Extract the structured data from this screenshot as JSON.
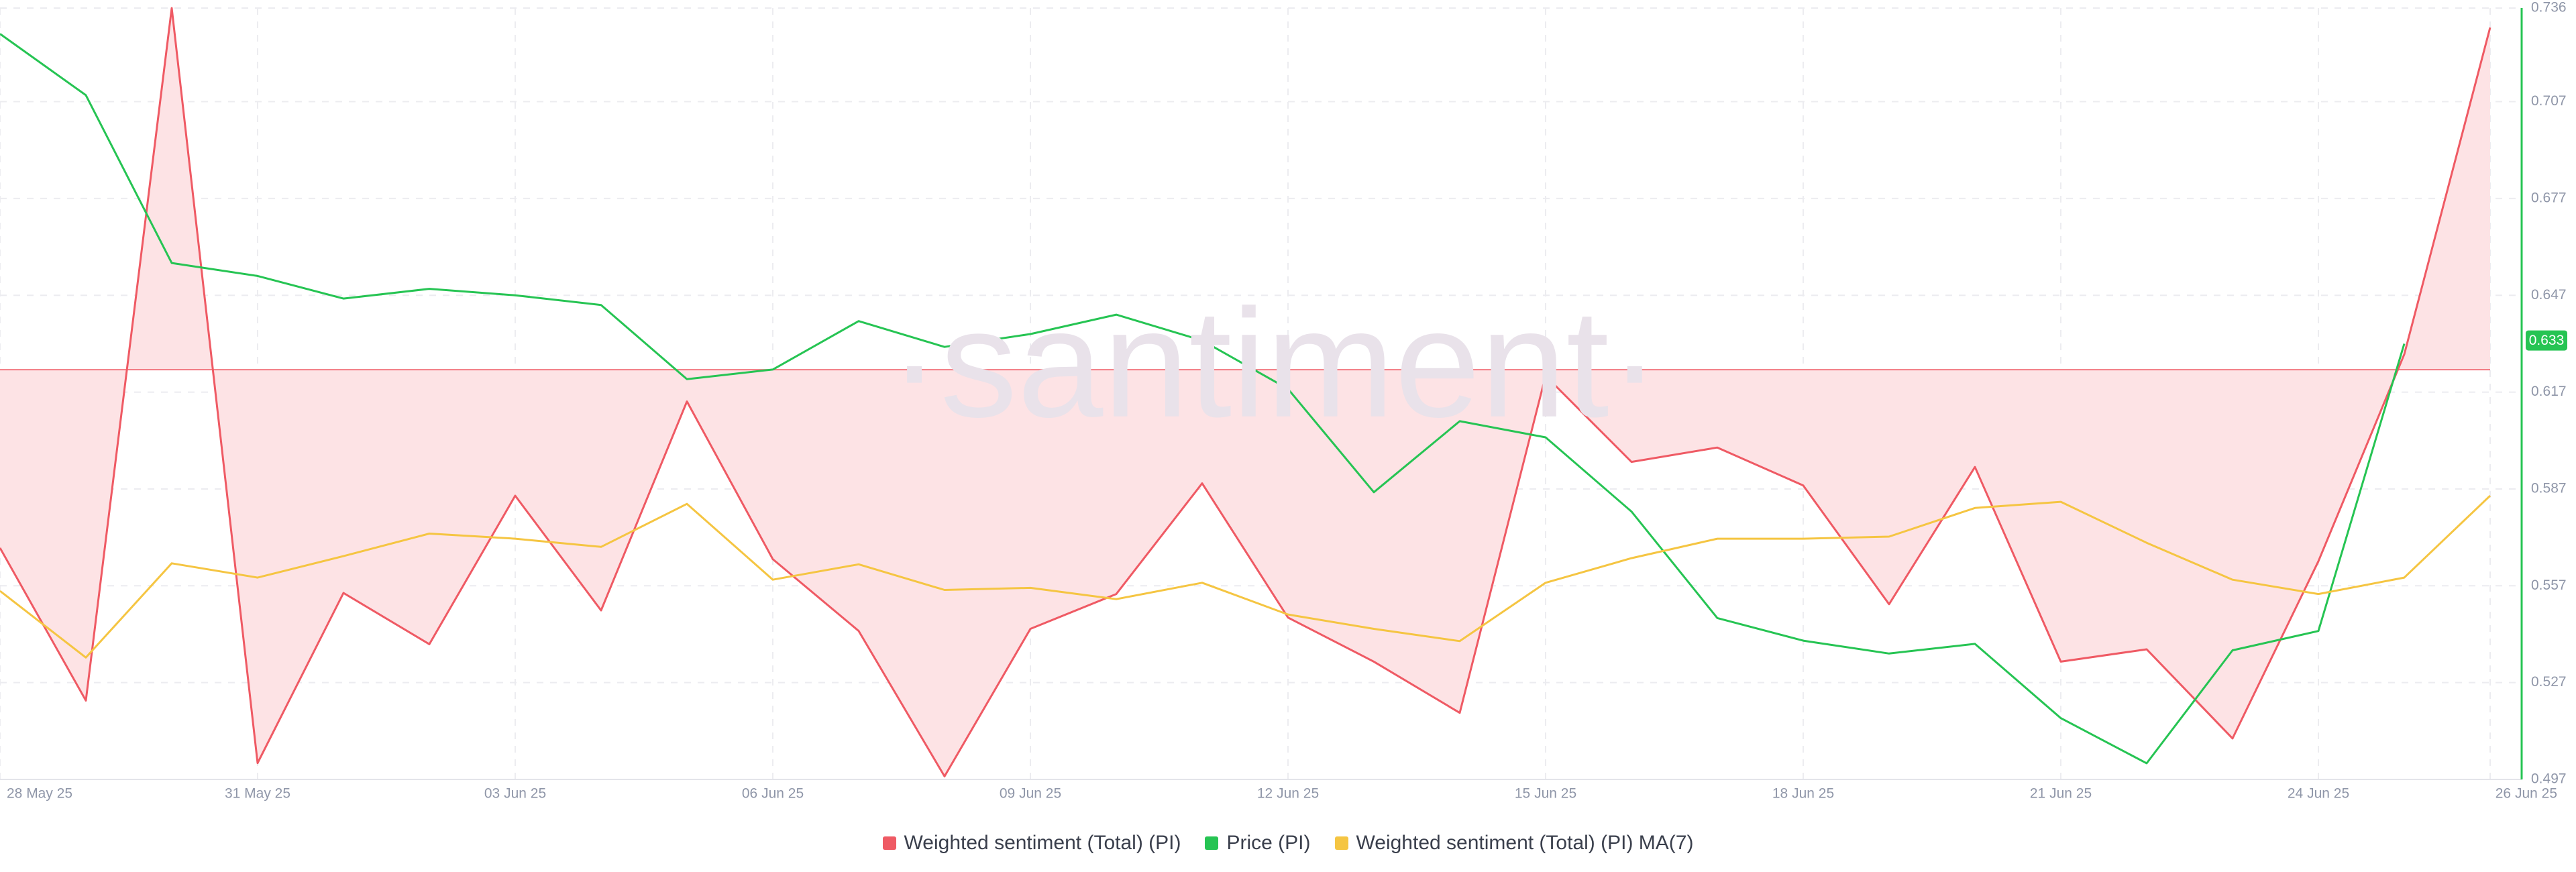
{
  "chart_data": {
    "type": "line",
    "watermark": "·santiment·",
    "x": [
      "28 May 25",
      "29 May 25",
      "30 May 25",
      "31 May 25",
      "01 Jun 25",
      "02 Jun 25",
      "03 Jun 25",
      "04 Jun 25",
      "05 Jun 25",
      "06 Jun 25",
      "07 Jun 25",
      "08 Jun 25",
      "09 Jun 25",
      "10 Jun 25",
      "11 Jun 25",
      "12 Jun 25",
      "13 Jun 25",
      "14 Jun 25",
      "15 Jun 25",
      "16 Jun 25",
      "17 Jun 25",
      "18 Jun 25",
      "19 Jun 25",
      "20 Jun 25",
      "21 Jun 25",
      "22 Jun 25",
      "23 Jun 25",
      "24 Jun 25",
      "25 Jun 25",
      "26 Jun 25"
    ],
    "xticks": [
      "28 May 25",
      "31 May 25",
      "03 Jun 25",
      "06 Jun 25",
      "09 Jun 25",
      "12 Jun 25",
      "15 Jun 25",
      "18 Jun 25",
      "21 Jun 25",
      "24 Jun 25",
      "26 Jun 25"
    ],
    "ylim": [
      -4,
      3.53
    ],
    "y2lim": [
      0.497,
      0.736
    ],
    "y2ticks": [
      0.497,
      0.527,
      0.557,
      0.587,
      0.617,
      0.647,
      0.677,
      0.707,
      0.736
    ],
    "price_badge": 0.633,
    "grid": true,
    "legend": "bottom",
    "series": [
      {
        "name": "Weighted sentiment (Total) (PI)",
        "color": "#ef5a64",
        "fill": "#fde3e5",
        "axis": "y",
        "values": [
          -1.74,
          -3.23,
          3.53,
          -3.84,
          -2.18,
          -2.68,
          -1.23,
          -2.35,
          -0.31,
          -1.85,
          -2.55,
          -3.97,
          -2.53,
          -2.19,
          -1.11,
          -2.42,
          -2.85,
          -3.35,
          -0.06,
          -0.9,
          -0.76,
          -1.13,
          -2.29,
          -0.95,
          -2.85,
          -2.73,
          -3.6,
          -1.87,
          0.15,
          3.34
        ]
      },
      {
        "name": "Price (PI)",
        "color": "#26c453",
        "axis": "y2",
        "values": [
          0.728,
          0.709,
          0.657,
          0.653,
          0.646,
          0.649,
          0.647,
          0.644,
          0.621,
          0.624,
          0.639,
          0.631,
          0.635,
          0.641,
          0.633,
          0.618,
          0.586,
          0.608,
          0.603,
          0.58,
          0.547,
          0.54,
          0.536,
          0.539,
          0.516,
          0.502,
          0.537,
          0.543,
          0.632,
          null
        ]
      },
      {
        "name": "Weighted sentiment (Total) (PI) MA(7)",
        "color": "#f5c542",
        "axis": "y",
        "values": [
          -2.16,
          -2.81,
          -1.89,
          -2.03,
          -1.82,
          -1.6,
          -1.65,
          -1.73,
          -1.31,
          -2.05,
          -1.9,
          -2.15,
          -2.13,
          -2.24,
          -2.08,
          -2.39,
          -2.53,
          -2.65,
          -2.08,
          -1.84,
          -1.65,
          -1.65,
          -1.63,
          -1.35,
          -1.29,
          -1.69,
          -2.05,
          -2.19,
          -2.03,
          -1.23
        ]
      }
    ]
  }
}
